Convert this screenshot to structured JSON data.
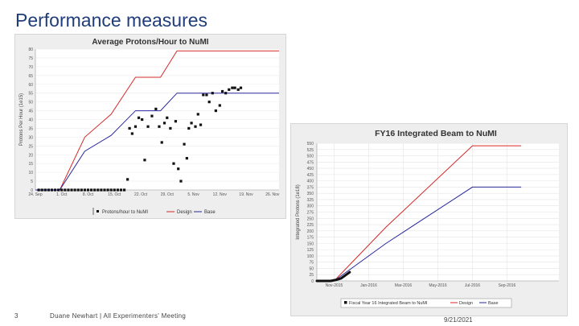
{
  "slide": {
    "title": "Performance measures",
    "page_number": "3",
    "footer_text": "Duane Newhart | All Experimenters' Meeting",
    "date": "9/21/2021"
  },
  "colors": {
    "design": "#d62828",
    "base": "#28289a",
    "points": "#111111",
    "title": "#1f3d7a"
  },
  "chart_data": [
    {
      "type": "scatter",
      "title": "Average Protons/Hour to NuMI",
      "xlabel": "",
      "ylabel": "Protons Per Hour (1e15)",
      "ylim": [
        0,
        80
      ],
      "xlim": [
        0,
        37
      ],
      "y_ticks": [
        0,
        5,
        10,
        15,
        20,
        25,
        30,
        35,
        40,
        45,
        50,
        55,
        60,
        65,
        70,
        75,
        80
      ],
      "x_ticks": [
        {
          "x": 0,
          "label": "24. Sep"
        },
        {
          "x": 4,
          "label": "1. Oct"
        },
        {
          "x": 8,
          "label": "8. Oct"
        },
        {
          "x": 12,
          "label": "15. Oct"
        },
        {
          "x": 16,
          "label": "22. Oct"
        },
        {
          "x": 20,
          "label": "29. Oct"
        },
        {
          "x": 24,
          "label": "5. Nov"
        },
        {
          "x": 28,
          "label": "12. Nov"
        },
        {
          "x": 32,
          "label": "19. Nov"
        },
        {
          "x": 36,
          "label": "26. Nov"
        }
      ],
      "legend": [
        "Protons/hour to NuMI",
        "Design",
        "Base"
      ],
      "series": [
        {
          "name": "Design",
          "kind": "line",
          "x": [
            0,
            3.7,
            7.5,
            11.5,
            15.2,
            19,
            21.5,
            25.5,
            37
          ],
          "y": [
            0,
            0,
            30,
            43,
            64,
            64,
            79,
            79,
            79
          ]
        },
        {
          "name": "Base",
          "kind": "line",
          "x": [
            0,
            3.7,
            7.5,
            11.5,
            15.2,
            19,
            21.5,
            25.5,
            37
          ],
          "y": [
            0,
            0,
            22,
            31,
            45,
            45,
            55,
            55,
            55
          ]
        },
        {
          "name": "Protons/hour to NuMI",
          "kind": "scatter",
          "x": [
            0.5,
            1,
            1.5,
            2,
            2.5,
            3,
            3.5,
            4,
            4.5,
            5,
            5.5,
            6,
            6.5,
            7,
            7.5,
            8,
            8.5,
            9,
            9.5,
            10,
            10.5,
            11,
            11.5,
            12,
            12.5,
            13,
            13.5,
            14,
            14.3,
            14.7,
            15.2,
            15.7,
            16.2,
            16.6,
            17.1,
            17.7,
            18.3,
            18.8,
            19.2,
            19.6,
            20,
            20.5,
            21,
            21.3,
            21.7,
            22.1,
            22.6,
            23,
            23.3,
            23.7,
            24.3,
            24.7,
            25.1,
            25.5,
            26,
            26.4,
            26.9,
            27.4,
            28,
            28.4,
            28.9,
            29.4,
            29.9,
            30.3,
            30.8,
            31.2
          ],
          "y": [
            0,
            0,
            0,
            0,
            0,
            0,
            0,
            0,
            0,
            0,
            0,
            0,
            0,
            0,
            0,
            0,
            0,
            0,
            0,
            0,
            0,
            0,
            0,
            0,
            0,
            0,
            0,
            6,
            35,
            32,
            36,
            41,
            40,
            17,
            36,
            42,
            46,
            36,
            27,
            38,
            41,
            35,
            15,
            39,
            12,
            5,
            26,
            18,
            35,
            38,
            36,
            43,
            37,
            54,
            54,
            50,
            55,
            45,
            48,
            56,
            55,
            57,
            58,
            58,
            57,
            58
          ]
        }
      ]
    },
    {
      "type": "line",
      "title": "FY16 Integrated Beam to NuMI",
      "xlabel": "",
      "ylabel": "Integrated Protons (1e18)",
      "ylim": [
        0,
        550
      ],
      "xlim": [
        0,
        14
      ],
      "y_ticks": [
        0,
        25,
        50,
        75,
        100,
        125,
        150,
        175,
        200,
        225,
        250,
        275,
        300,
        325,
        350,
        375,
        400,
        425,
        450,
        475,
        500,
        525,
        550
      ],
      "x_ticks": [
        {
          "x": 1,
          "label": "Nov-2015"
        },
        {
          "x": 3,
          "label": "Jan-2016"
        },
        {
          "x": 5,
          "label": "Mar-2016"
        },
        {
          "x": 7,
          "label": "May-2016"
        },
        {
          "x": 9,
          "label": "Jul-2016"
        },
        {
          "x": 11,
          "label": "Sep-2016"
        }
      ],
      "legend": [
        "Fiscal Year 16 Integrated Beam to NuMI",
        "Design",
        "Base"
      ],
      "series": [
        {
          "name": "Design",
          "x": [
            0,
            1,
            4,
            9,
            11.8
          ],
          "y": [
            0,
            0,
            215,
            540,
            540
          ]
        },
        {
          "name": "Base",
          "x": [
            0,
            1,
            4,
            9,
            11.8
          ],
          "y": [
            0,
            0,
            150,
            375,
            375
          ]
        },
        {
          "name": "Fiscal Year 16 Integrated Beam to NuMI",
          "x": [
            0,
            0.8,
            1.1,
            1.4,
            1.6,
            1.9
          ],
          "y": [
            0,
            0,
            4,
            10,
            20,
            35
          ]
        }
      ]
    }
  ]
}
